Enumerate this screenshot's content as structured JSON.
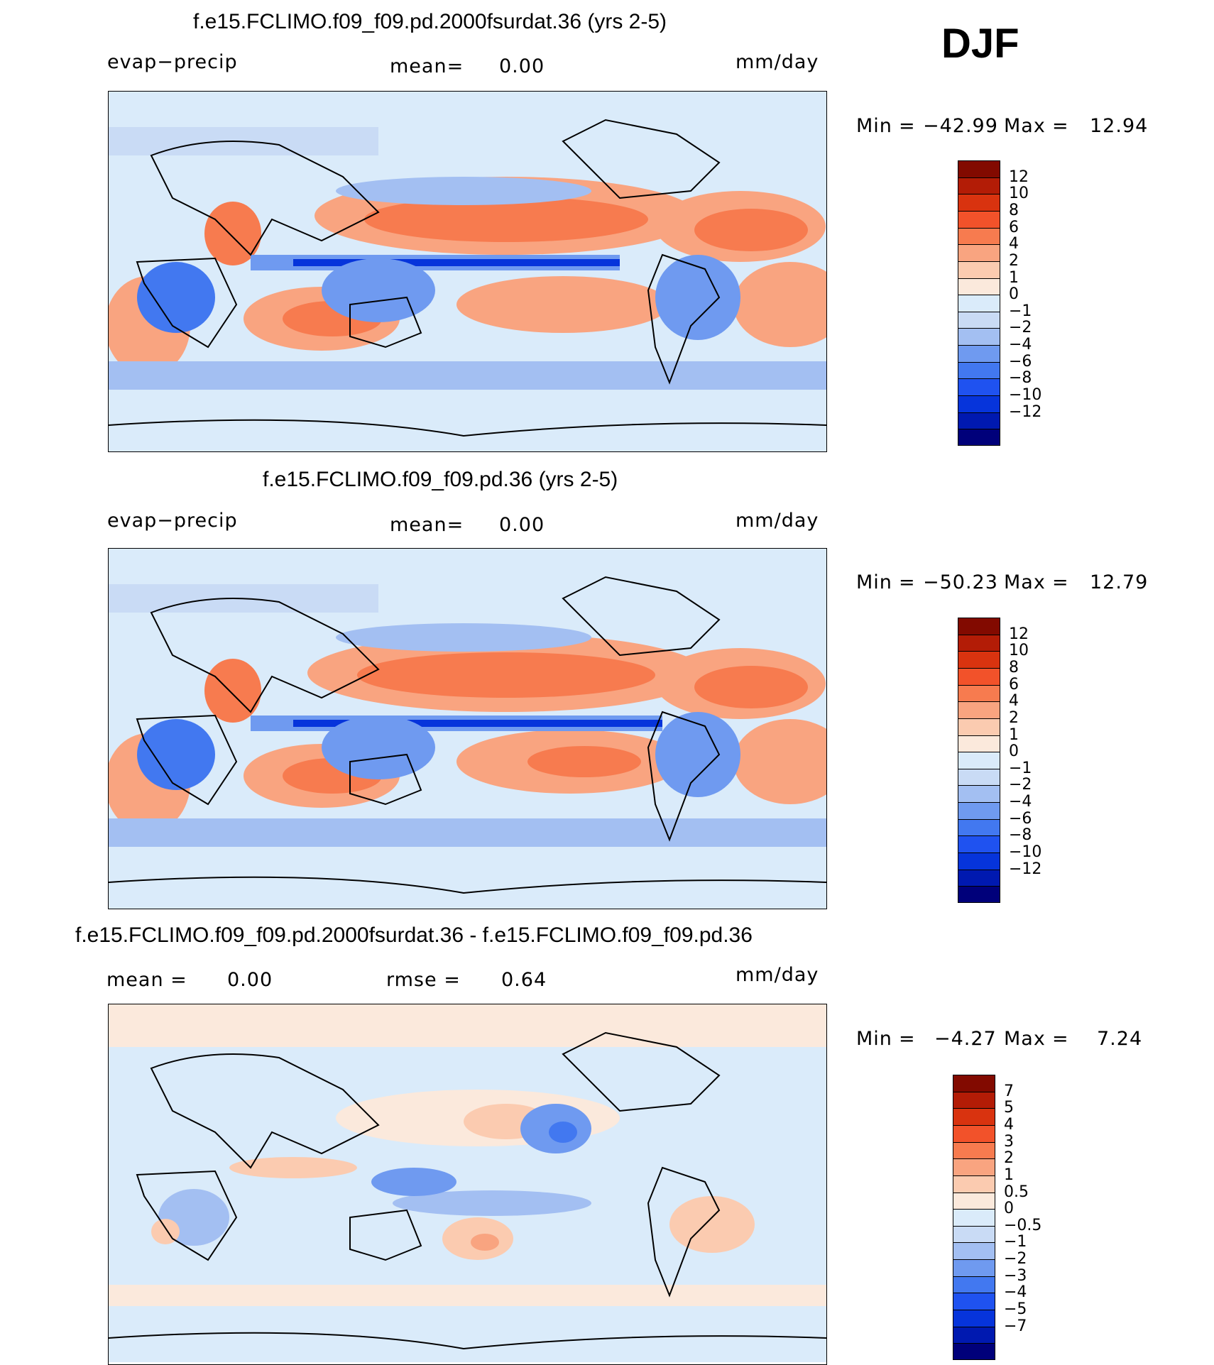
{
  "season": "DJF",
  "colors": {
    "abs_scale": [
      "#00007a",
      "#0019b0",
      "#0634db",
      "#1f52f0",
      "#4278f0",
      "#6f9af0",
      "#a3bff2",
      "#c9dbf5",
      "#daebfa",
      "#fbe9dc",
      "#fbcbb0",
      "#f9a480",
      "#f77b4f",
      "#f2522a",
      "#d9330f",
      "#b31c06",
      "#820a00"
    ],
    "diff_scale": [
      "#00007a",
      "#0019b0",
      "#0634db",
      "#1f52f0",
      "#4278f0",
      "#6f9af0",
      "#a3bff2",
      "#c9dbf5",
      "#daebfa",
      "#fbe9dc",
      "#fbcbb0",
      "#f9a480",
      "#f77b4f",
      "#f2522a",
      "#d9330f",
      "#b31c06",
      "#820a00"
    ]
  },
  "panels": [
    {
      "title": "f.e15.FCLIMO.f09_f09.pd.2000fsurdat.36 (yrs 2-5)",
      "variable": "evap−precip",
      "mean_label": "mean=",
      "mean_value": "0.00",
      "units": "mm/day",
      "min_label": "Min",
      "min_value": "−42.99",
      "max_label": "Max",
      "max_value": "12.94",
      "colorbar_labels": [
        "12",
        "10",
        "8",
        "6",
        "4",
        "2",
        "1",
        "0",
        "−1",
        "−2",
        "−4",
        "−6",
        "−8",
        "−10",
        "−12"
      ]
    },
    {
      "title": "f.e15.FCLIMO.f09_f09.pd.36 (yrs 2-5)",
      "variable": "evap−precip",
      "mean_label": "mean=",
      "mean_value": "0.00",
      "units": "mm/day",
      "min_label": "Min",
      "min_value": "−50.23",
      "max_label": "Max",
      "max_value": "12.79",
      "colorbar_labels": [
        "12",
        "10",
        "8",
        "6",
        "4",
        "2",
        "1",
        "0",
        "−1",
        "−2",
        "−4",
        "−6",
        "−8",
        "−10",
        "−12"
      ]
    },
    {
      "title": "f.e15.FCLIMO.f09_f09.pd.2000fsurdat.36 - f.e15.FCLIMO.f09_f09.pd.36",
      "mean_label": "mean =",
      "mean_value": "0.00",
      "rmse_label": "rmse =",
      "rmse_value": "0.64",
      "units": "mm/day",
      "min_label": "Min",
      "min_value": "−4.27",
      "max_label": "Max",
      "max_value": "7.24",
      "colorbar_labels": [
        "7",
        "5",
        "4",
        "3",
        "2",
        "1",
        "0.5",
        "0",
        "−0.5",
        "−1",
        "−2",
        "−3",
        "−4",
        "−5",
        "−7"
      ]
    }
  ]
}
